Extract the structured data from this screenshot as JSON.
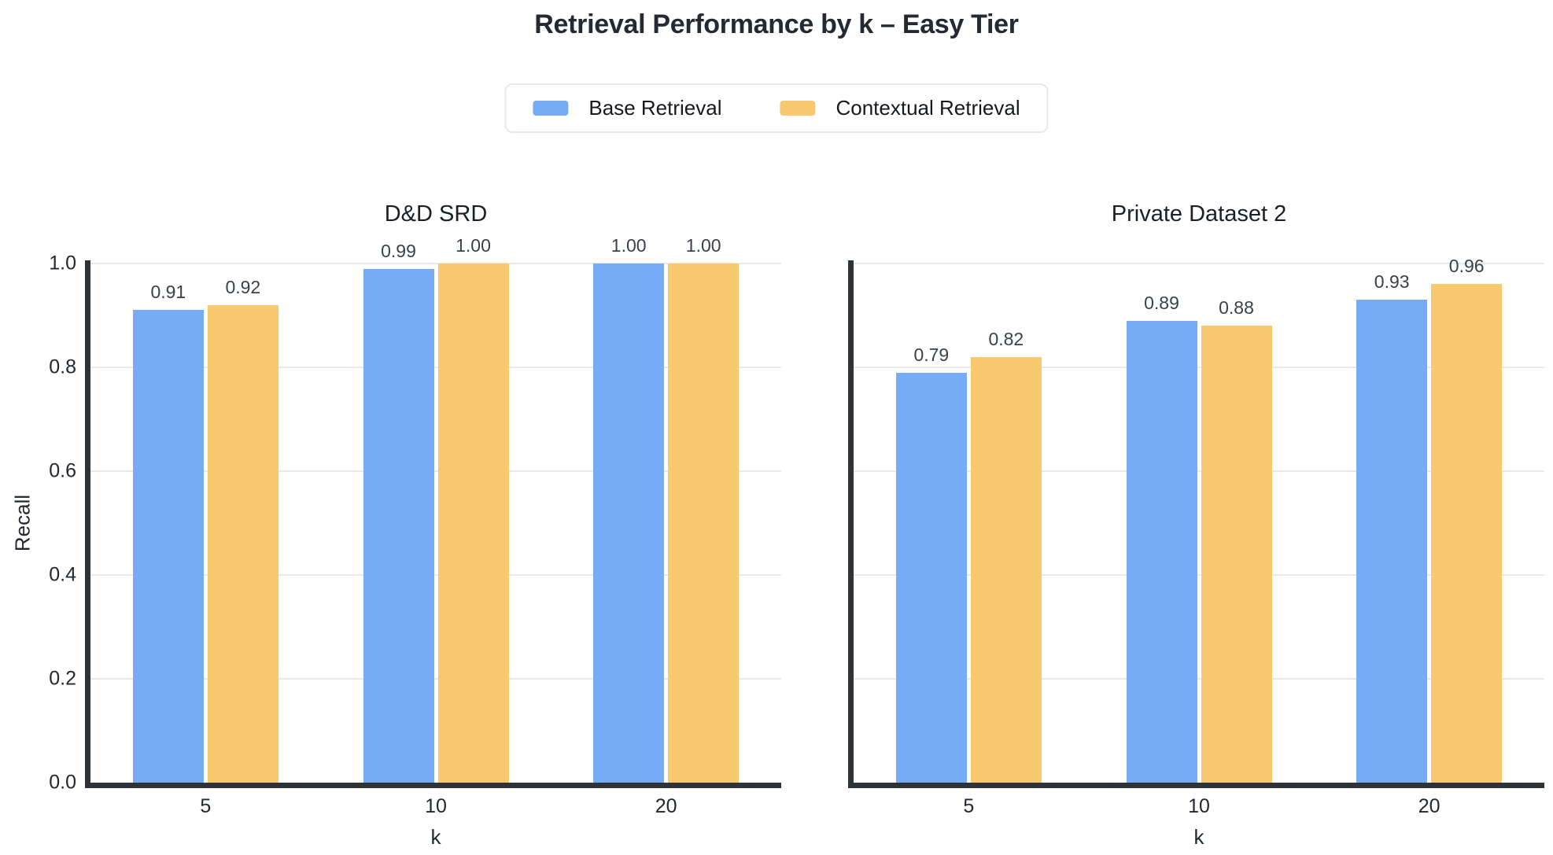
{
  "page": {
    "title": "Retrieval Performance by k – Easy Tier"
  },
  "colors": {
    "base_retrieval": "#76acf6",
    "contextual_retrieval": "#f9c96f",
    "axis": "#2e3338",
    "gridline": "#e9e9e9",
    "title_text": "#242933"
  },
  "legend": {
    "items": [
      {
        "label": "Base Retrieval",
        "color": "#76acf6",
        "swatch_icon": "color-swatch-icon"
      },
      {
        "label": "Contextual Retrieval",
        "color": "#f9c96f",
        "swatch_icon": "color-swatch-icon"
      }
    ]
  },
  "chart_data": [
    {
      "type": "bar",
      "title": "D&D SRD",
      "categories": [
        "5",
        "10",
        "20"
      ],
      "series": [
        {
          "name": "Base Retrieval",
          "color": "#76acf6",
          "values": [
            0.91,
            0.99,
            1.0
          ]
        },
        {
          "name": "Contextual Retrieval",
          "color": "#f9c96f",
          "values": [
            0.92,
            1.0,
            1.0
          ]
        }
      ],
      "value_labels": [
        [
          "0.91",
          "0.99",
          "1.00"
        ],
        [
          "0.92",
          "1.00",
          "1.00"
        ]
      ],
      "xlabel": "k",
      "ylabel": "Recall",
      "ylim": [
        0.0,
        1.0
      ],
      "yticks": [
        "0.0",
        "0.2",
        "0.4",
        "0.6",
        "0.8",
        "1.0"
      ],
      "gridlines": [
        0.2,
        0.4,
        0.6,
        0.8,
        1.0
      ],
      "grid": true,
      "legend_position": "top-center-shared"
    },
    {
      "type": "bar",
      "title": "Private Dataset 2",
      "categories": [
        "5",
        "10",
        "20"
      ],
      "series": [
        {
          "name": "Base Retrieval",
          "color": "#76acf6",
          "values": [
            0.79,
            0.89,
            0.93
          ]
        },
        {
          "name": "Contextual Retrieval",
          "color": "#f9c96f",
          "values": [
            0.82,
            0.88,
            0.96
          ]
        }
      ],
      "value_labels": [
        [
          "0.79",
          "0.89",
          "0.93"
        ],
        [
          "0.82",
          "0.88",
          "0.96"
        ]
      ],
      "xlabel": "k",
      "ylabel": "",
      "ylim": [
        0.0,
        1.0
      ],
      "yticks": [],
      "gridlines": [
        0.2,
        0.4,
        0.6,
        0.8,
        1.0
      ],
      "grid": true,
      "legend_position": "top-center-shared"
    }
  ]
}
